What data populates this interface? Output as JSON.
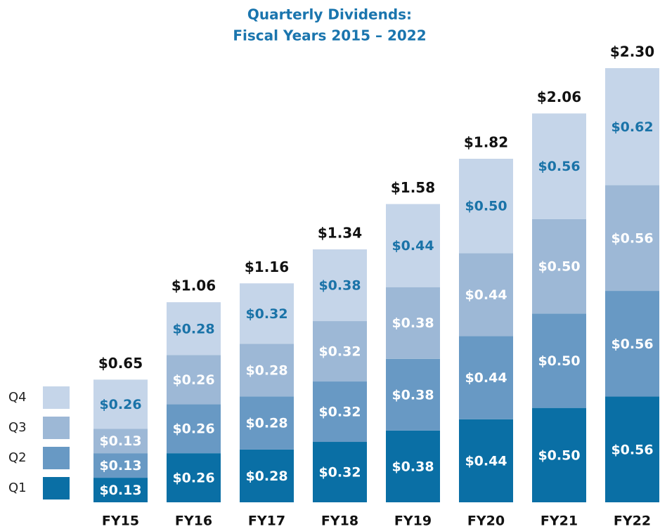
{
  "chart_data": {
    "type": "stacked_bar",
    "title": "Quarterly Dividends:",
    "subtitle": "Fiscal Years 2015 – 2022",
    "categories": [
      "FY15",
      "FY16",
      "FY17",
      "FY18",
      "FY19",
      "FY20",
      "FY21",
      "FY22"
    ],
    "series": [
      {
        "name": "Q1",
        "color": "#0a6fa5",
        "label_color": "#ffffff",
        "values": [
          0.13,
          0.26,
          0.28,
          0.32,
          0.38,
          0.44,
          0.5,
          0.56
        ],
        "value_labels": [
          "$0.13",
          "$0.26",
          "$0.28",
          "$0.32",
          "$0.38",
          "$0.44",
          "$0.50",
          "$0.56"
        ]
      },
      {
        "name": "Q2",
        "color": "#6899c4",
        "label_color": "#ffffff",
        "values": [
          0.13,
          0.26,
          0.28,
          0.32,
          0.38,
          0.44,
          0.5,
          0.56
        ],
        "value_labels": [
          "$0.13",
          "$0.26",
          "$0.28",
          "$0.32",
          "$0.38",
          "$0.44",
          "$0.50",
          "$0.56"
        ]
      },
      {
        "name": "Q3",
        "color": "#9db8d6",
        "label_color": "#ffffff",
        "values": [
          0.13,
          0.26,
          0.28,
          0.32,
          0.38,
          0.44,
          0.5,
          0.56
        ],
        "value_labels": [
          "$0.13",
          "$0.26",
          "$0.28",
          "$0.32",
          "$0.38",
          "$0.44",
          "$0.50",
          "$0.56"
        ]
      },
      {
        "name": "Q4",
        "color": "#c5d5e9",
        "label_color": "#1a73a8",
        "values": [
          0.26,
          0.28,
          0.32,
          0.38,
          0.44,
          0.5,
          0.56,
          0.62
        ],
        "value_labels": [
          "$0.26",
          "$0.28",
          "$0.32",
          "$0.38",
          "$0.44",
          "$0.50",
          "$0.56",
          "$0.62"
        ]
      }
    ],
    "totals": [
      0.65,
      1.06,
      1.16,
      1.34,
      1.58,
      1.82,
      2.06,
      2.3
    ],
    "total_labels": [
      "$0.65",
      "$1.06",
      "$1.16",
      "$1.34",
      "$1.58",
      "$1.82",
      "$2.06",
      "$2.30"
    ],
    "legend": "bottom-left"
  }
}
